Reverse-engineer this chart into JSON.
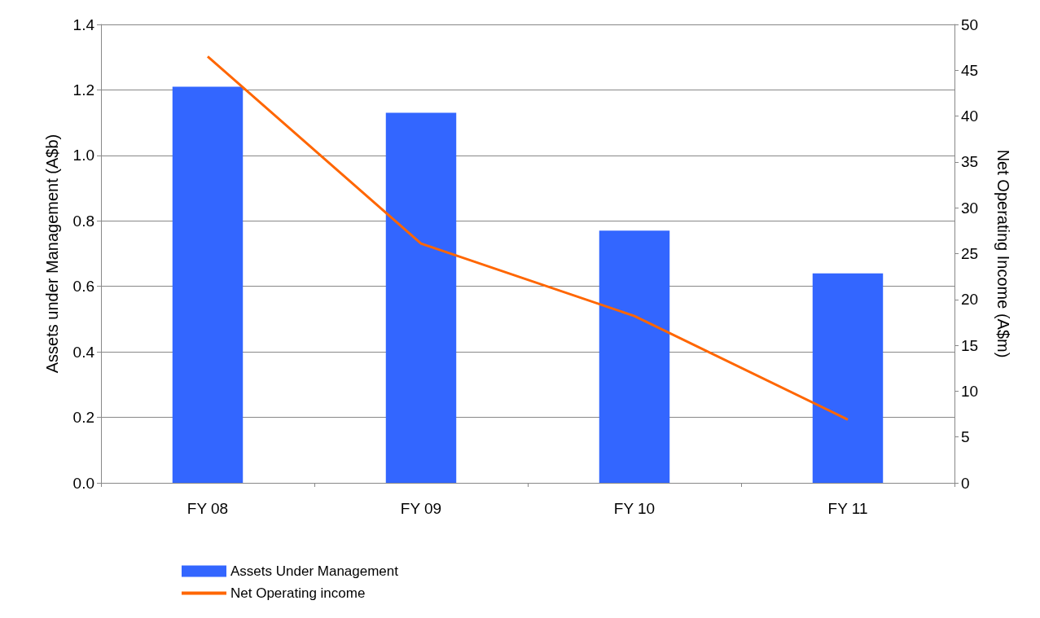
{
  "chart_data": {
    "type": "bar",
    "categories": [
      "FY 08",
      "FY 09",
      "FY 10",
      "FY 11"
    ],
    "series": [
      {
        "name": "Assets Under Management",
        "color": "#3366ff",
        "values": [
          1.21,
          1.13,
          0.77,
          0.64
        ]
      },
      {
        "name": "Net Operating income",
        "type": "line",
        "axis": "y2",
        "color": "#ff6600",
        "values": [
          46.5,
          26.1,
          18.2,
          6.9
        ]
      }
    ],
    "ylabel": "Assets under Management (A$b)",
    "y2label": "Net Operating Income (A$m)",
    "ylim": [
      0,
      1.4
    ],
    "yticks": [
      {
        "value": 0,
        "label": "0.0"
      },
      {
        "value": 0.2,
        "label": "0.2"
      },
      {
        "value": 0.4,
        "label": "0.4"
      },
      {
        "value": 0.6,
        "label": "0.6"
      },
      {
        "value": 0.8,
        "label": "0.8"
      },
      {
        "value": 1,
        "label": "1.0"
      },
      {
        "value": 1.2,
        "label": "1.2"
      },
      {
        "value": 1.4,
        "label": "1.4"
      }
    ],
    "y2lim": [
      0,
      50
    ],
    "y2ticks": [
      0,
      5,
      10,
      15,
      20,
      25,
      30,
      35,
      40,
      45,
      50
    ],
    "grid": "y",
    "legend": "bottom",
    "marker": "none"
  }
}
